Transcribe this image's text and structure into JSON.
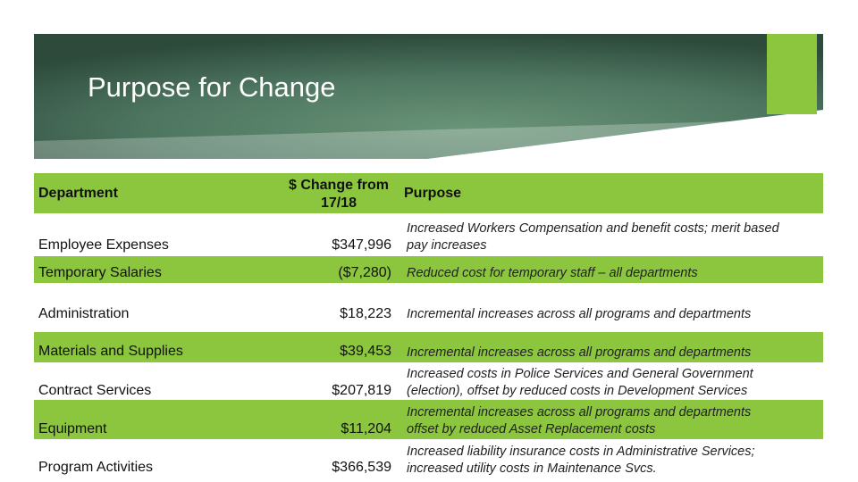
{
  "slide": {
    "title": "Purpose for Change",
    "colors": {
      "accent": "#8cc63f",
      "banner_dark": "#2d4a3a",
      "banner_light": "#5f8a6e"
    }
  },
  "table": {
    "headers": {
      "department": "Department",
      "change": "$ Change from 17/18",
      "purpose": "Purpose"
    },
    "rows": [
      {
        "department": "Employee Expenses",
        "change": "$347,996",
        "purpose_lines": [
          "Increased Workers Compensation and benefit costs; merit based",
          "pay increases"
        ]
      },
      {
        "department": "Temporary Salaries",
        "change": "($7,280)",
        "purpose_lines": [
          "Reduced cost for temporary staff – all departments"
        ]
      },
      {
        "department": "Administration",
        "change": "$18,223",
        "purpose_lines": [
          "Incremental increases across all programs and departments"
        ]
      },
      {
        "department": "Materials and Supplies",
        "change": "$39,453",
        "purpose_lines": [
          "Incremental increases across all programs and departments"
        ]
      },
      {
        "department": "Contract Services",
        "change": "$207,819",
        "purpose_lines": [
          "Increased costs in Police Services and General Government",
          "(election), offset by reduced costs in Development Services"
        ]
      },
      {
        "department": "Equipment",
        "change": "$11,204",
        "purpose_lines": [
          "Incremental increases across all programs and departments",
          "offset by reduced Asset Replacement costs"
        ]
      },
      {
        "department": "Program Activities",
        "change": "$366,539",
        "purpose_lines": [
          "Increased liability insurance costs in Administrative Services;",
          "increased utility costs in Maintenance Svcs."
        ]
      }
    ]
  }
}
